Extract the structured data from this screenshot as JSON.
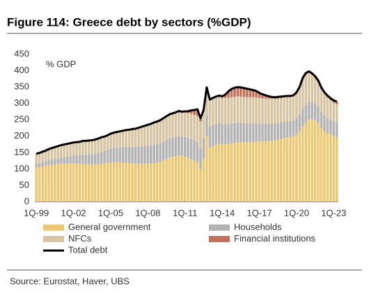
{
  "chart_data": {
    "type": "bar",
    "stacked": true,
    "title": "Figure 114: Greece debt by sectors (%GDP)",
    "ylabel": "% GDP",
    "source": "Source: Eurostat, Haver, UBS",
    "categories": [
      "1Q-99",
      null,
      null,
      null,
      null,
      null,
      null,
      null,
      null,
      null,
      null,
      null,
      "1Q-02",
      null,
      null,
      null,
      null,
      null,
      null,
      null,
      null,
      null,
      null,
      null,
      "1Q-05",
      null,
      null,
      null,
      null,
      null,
      null,
      null,
      null,
      null,
      null,
      null,
      "1Q-08",
      null,
      null,
      null,
      null,
      null,
      null,
      null,
      null,
      null,
      null,
      null,
      "1Q-11",
      null,
      null,
      null,
      null,
      null,
      null,
      null,
      null,
      null,
      null,
      null,
      "1Q-14",
      null,
      null,
      null,
      null,
      null,
      null,
      null,
      null,
      null,
      null,
      null,
      "1Q-17",
      null,
      null,
      null,
      null,
      null,
      null,
      null,
      null,
      null,
      null,
      null,
      "1Q-20",
      null,
      null,
      null,
      null,
      null,
      null,
      null,
      null,
      null,
      null,
      null,
      "1Q-23",
      null
    ],
    "ylim": [
      0,
      450
    ],
    "yticks": [
      0,
      50,
      100,
      150,
      200,
      250,
      300,
      350,
      400,
      450
    ],
    "series": [
      {
        "name": "General government",
        "color": "#ecc872",
        "values": [
          105,
          106,
          108,
          110,
          112,
          113,
          114,
          115,
          116,
          116,
          117,
          117,
          117,
          116,
          116,
          116,
          115,
          115,
          114,
          114,
          115,
          116,
          117,
          118,
          120,
          121,
          121,
          121,
          120,
          119,
          118,
          117,
          116,
          116,
          116,
          116,
          116,
          117,
          118,
          120,
          122,
          126,
          130,
          135,
          138,
          140,
          142,
          140,
          138,
          135,
          130,
          125,
          120,
          100,
          130,
          200,
          165,
          170,
          175,
          178,
          175,
          175,
          176,
          178,
          180,
          182,
          182,
          182,
          181,
          182,
          183,
          184,
          184,
          184,
          185,
          185,
          186,
          188,
          190,
          192,
          195,
          197,
          198,
          200,
          205,
          215,
          230,
          240,
          250,
          252,
          248,
          240,
          225,
          215,
          210,
          205,
          200,
          197
        ]
      },
      {
        "name": "Households",
        "color": "#b3b3b3",
        "values": [
          10,
          11,
          12,
          13,
          15,
          16,
          17,
          18,
          19,
          20,
          21,
          22,
          24,
          25,
          26,
          28,
          29,
          30,
          31,
          33,
          35,
          37,
          38,
          40,
          42,
          43,
          44,
          45,
          47,
          48,
          49,
          50,
          51,
          52,
          53,
          54,
          55,
          55,
          56,
          56,
          57,
          57,
          58,
          58,
          58,
          58,
          59,
          59,
          60,
          60,
          61,
          62,
          62,
          63,
          63,
          64,
          64,
          64,
          63,
          63,
          62,
          62,
          61,
          61,
          60,
          60,
          59,
          58,
          58,
          57,
          56,
          55,
          55,
          54,
          53,
          53,
          52,
          51,
          50,
          50,
          49,
          49,
          48,
          48,
          50,
          52,
          55,
          56,
          55,
          53,
          52,
          51,
          49,
          48,
          46,
          45,
          44,
          44
        ]
      },
      {
        "name": "NFCs",
        "color": "#d6c4a2",
        "values": [
          30,
          30,
          31,
          31,
          32,
          33,
          34,
          35,
          36,
          37,
          37,
          38,
          38,
          39,
          39,
          40,
          40,
          40,
          41,
          41,
          41,
          42,
          42,
          43,
          44,
          45,
          46,
          47,
          48,
          50,
          51,
          53,
          54,
          56,
          58,
          60,
          62,
          64,
          66,
          67,
          68,
          70,
          71,
          72,
          72,
          73,
          74,
          74,
          75,
          76,
          78,
          78,
          80,
          82,
          82,
          80,
          80,
          80,
          80,
          80,
          80,
          80,
          80,
          80,
          80,
          80,
          80,
          80,
          80,
          80,
          80,
          79,
          78,
          78,
          77,
          76,
          76,
          75,
          75,
          74,
          74,
          73,
          73,
          73,
          75,
          80,
          88,
          92,
          88,
          82,
          78,
          74,
          70,
          66,
          62,
          60,
          58,
          57
        ]
      },
      {
        "name": "Financial institutions",
        "color": "#c4715a",
        "values": [
          2,
          2,
          2,
          2,
          2,
          2,
          2,
          2,
          2,
          2,
          2,
          2,
          2,
          2,
          2,
          2,
          2,
          2,
          2,
          2,
          2,
          2,
          2,
          2,
          2,
          2,
          2,
          2,
          2,
          2,
          2,
          2,
          2,
          2,
          2,
          2,
          2,
          2,
          2,
          2,
          2,
          2,
          2,
          2,
          2,
          2,
          2,
          2,
          3,
          5,
          10,
          15,
          20,
          10,
          5,
          5,
          3,
          3,
          3,
          3,
          5,
          10,
          20,
          25,
          28,
          28,
          28,
          27,
          26,
          24,
          22,
          20,
          15,
          12,
          10,
          8,
          6,
          5,
          5,
          5,
          4,
          4,
          4,
          4,
          4,
          4,
          5,
          5,
          5,
          5,
          5,
          5,
          5,
          5,
          6,
          6,
          7,
          8
        ]
      },
      {
        "name": "Total debt",
        "color": "#000000",
        "type": "line",
        "values": [
          147,
          149,
          153,
          156,
          161,
          164,
          167,
          170,
          173,
          175,
          177,
          179,
          181,
          182,
          183,
          186,
          186,
          187,
          188,
          190,
          193,
          197,
          199,
          203,
          208,
          211,
          213,
          215,
          217,
          219,
          220,
          222,
          223,
          226,
          229,
          232,
          235,
          238,
          242,
          245,
          249,
          255,
          261,
          267,
          270,
          273,
          277,
          275,
          276,
          276,
          279,
          280,
          282,
          255,
          280,
          349,
          312,
          317,
          321,
          324,
          322,
          327,
          337,
          344,
          348,
          350,
          349,
          347,
          345,
          343,
          341,
          338,
          332,
          328,
          325,
          322,
          320,
          319,
          320,
          321,
          322,
          323,
          323,
          325,
          334,
          351,
          378,
          393,
          398,
          392,
          383,
          370,
          349,
          334,
          324,
          316,
          309,
          306
        ]
      }
    ]
  }
}
